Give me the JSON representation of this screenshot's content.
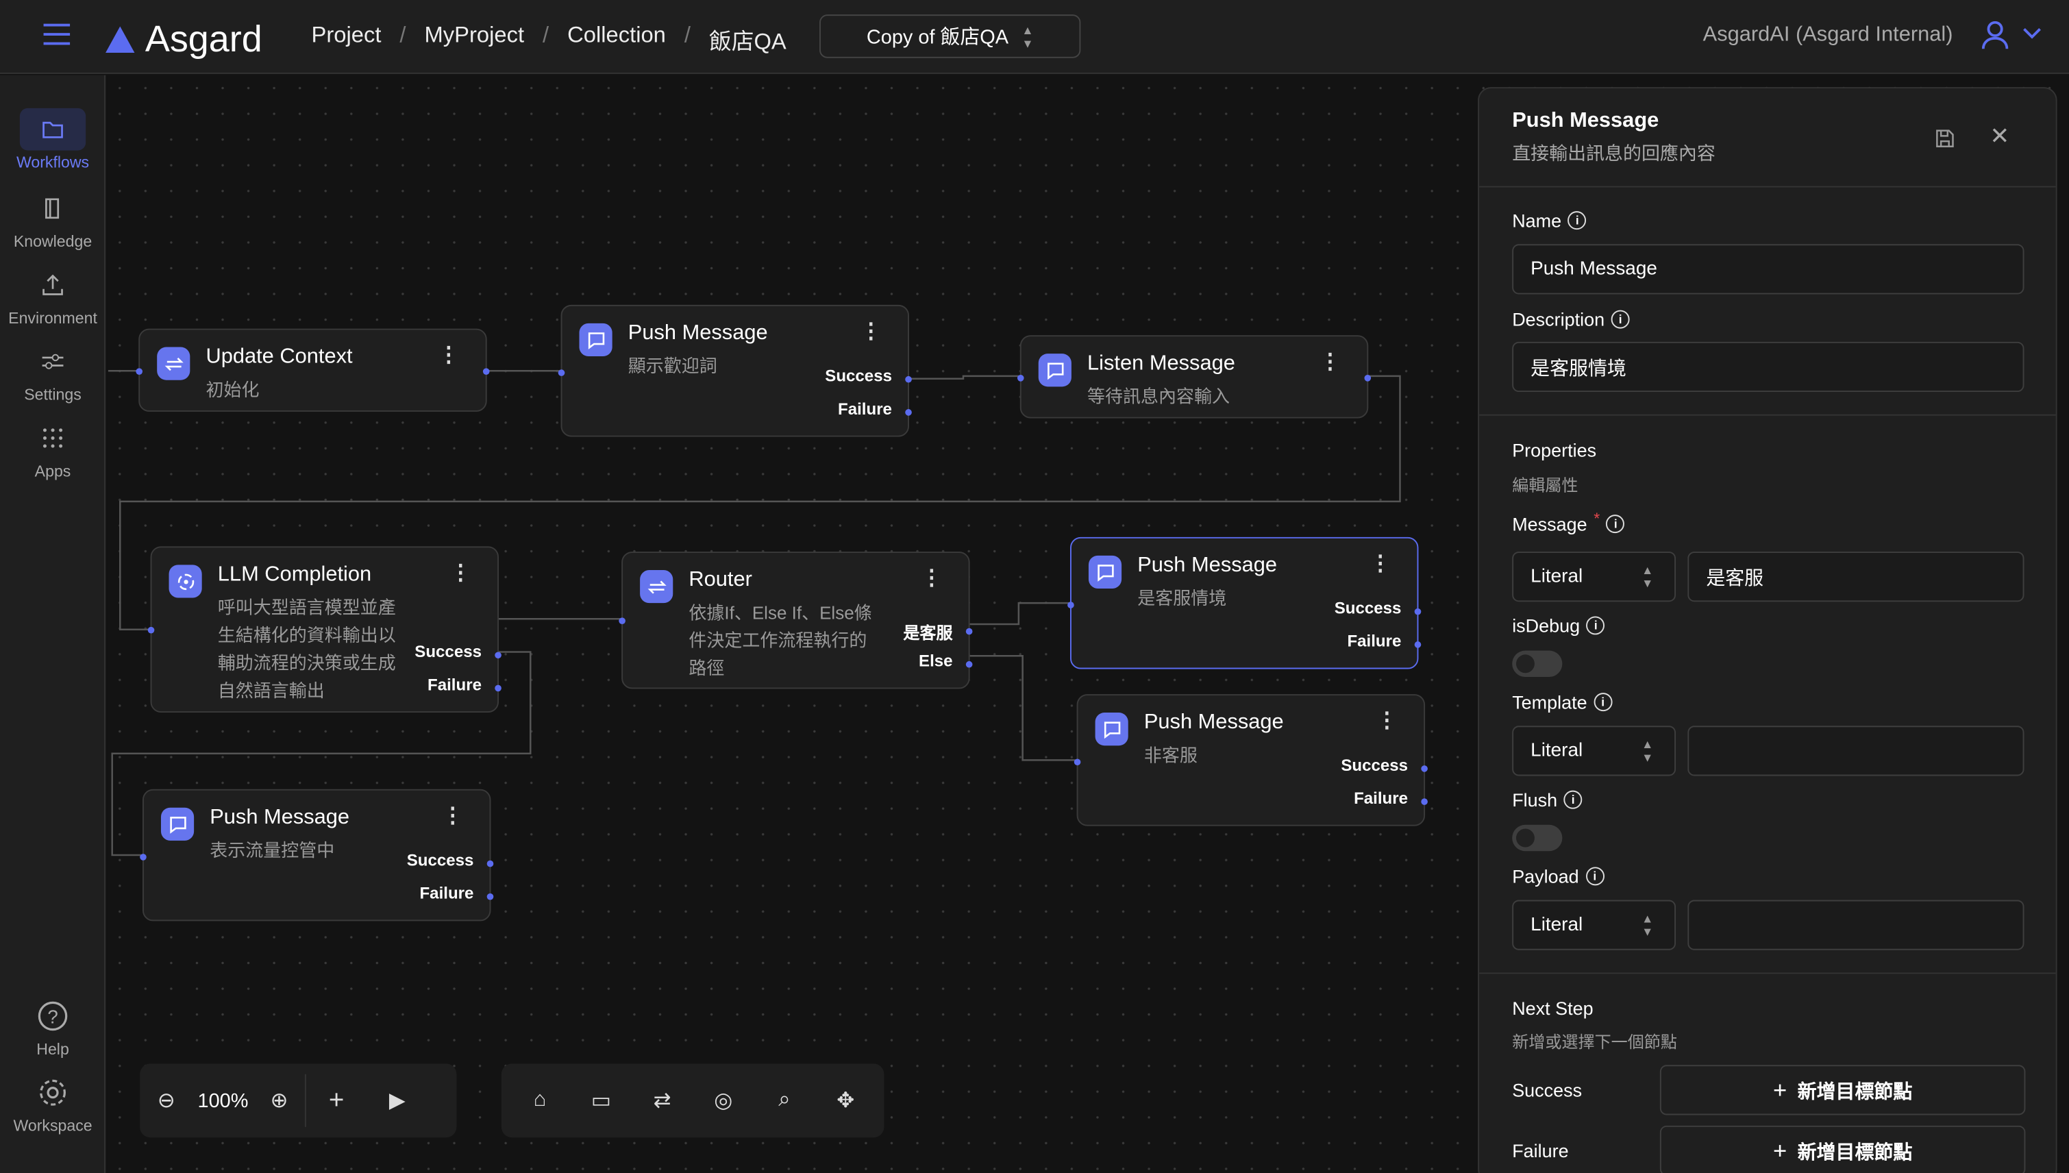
{
  "header": {
    "brand": "Asgard",
    "breadcrumb": [
      "Project",
      "MyProject",
      "Collection",
      "飯店QA"
    ],
    "workflow_select": "Copy of 飯店QA",
    "account": "AsgardAI (Asgard Internal)",
    "accent": "#5b6cf0"
  },
  "sidebar": {
    "items": [
      {
        "label": "Workflows",
        "icon": "folder-icon",
        "active": true
      },
      {
        "label": "Knowledge",
        "icon": "book-icon"
      },
      {
        "label": "Environment",
        "icon": "upload-icon"
      },
      {
        "label": "Settings",
        "icon": "sliders-icon"
      },
      {
        "label": "Apps",
        "icon": "grid-icon"
      }
    ],
    "bottom": [
      {
        "label": "Help",
        "icon": "help-icon"
      },
      {
        "label": "Workspace",
        "icon": "gear-icon"
      }
    ]
  },
  "nodes": [
    {
      "id": "update-context",
      "title": "Update Context",
      "desc": "初始化",
      "icon": "swap-icon",
      "outputs": []
    },
    {
      "id": "push-welcome",
      "title": "Push Message",
      "desc": "顯示歡迎詞",
      "icon": "message-icon",
      "outputs": [
        "Success",
        "Failure"
      ]
    },
    {
      "id": "listen",
      "title": "Listen Message",
      "desc": "等待訊息內容輸入",
      "icon": "message-icon",
      "outputs": []
    },
    {
      "id": "llm",
      "title": "LLM Completion",
      "desc": "呼叫大型語言模型並產生結構化的資料輸出以輔助流程的決策或生成自然語言輸出",
      "icon": "llm-icon",
      "outputs": [
        "Success",
        "Failure"
      ]
    },
    {
      "id": "router",
      "title": "Router",
      "desc": "依據If、Else If、Else條件決定工作流程執行的路徑",
      "icon": "swap-icon",
      "outputs": [
        "是客服",
        "Else"
      ]
    },
    {
      "id": "push-cs",
      "title": "Push Message",
      "desc": "是客服情境",
      "icon": "message-icon",
      "outputs": [
        "Success",
        "Failure"
      ],
      "selected": true
    },
    {
      "id": "push-noncs",
      "title": "Push Message",
      "desc": "非客服",
      "icon": "message-icon",
      "outputs": [
        "Success",
        "Failure"
      ]
    },
    {
      "id": "push-throttle",
      "title": "Push Message",
      "desc": "表示流量控管中",
      "icon": "message-icon",
      "outputs": [
        "Success",
        "Failure"
      ]
    }
  ],
  "toolbar": {
    "zoom": "100%"
  },
  "panel": {
    "title": "Push Message",
    "subtitle": "直接輸出訊息的回應內容",
    "name_label": "Name",
    "name_value": "Push Message",
    "desc_label": "Description",
    "desc_value": "是客服情境",
    "props_title": "Properties",
    "props_sub": "編輯屬性",
    "message_label": "Message",
    "message_required": "*",
    "message_type": "Literal",
    "message_value": "是客服",
    "isdebug_label": "isDebug",
    "isdebug_on": false,
    "template_label": "Template",
    "template_type": "Literal",
    "template_value": "",
    "flush_label": "Flush",
    "flush_on": false,
    "payload_label": "Payload",
    "payload_type": "Literal",
    "payload_value": "",
    "next_title": "Next Step",
    "next_sub": "新增或選擇下一個節點",
    "success_label": "Success",
    "failure_label": "Failure",
    "add_label": "新增目標節點"
  }
}
